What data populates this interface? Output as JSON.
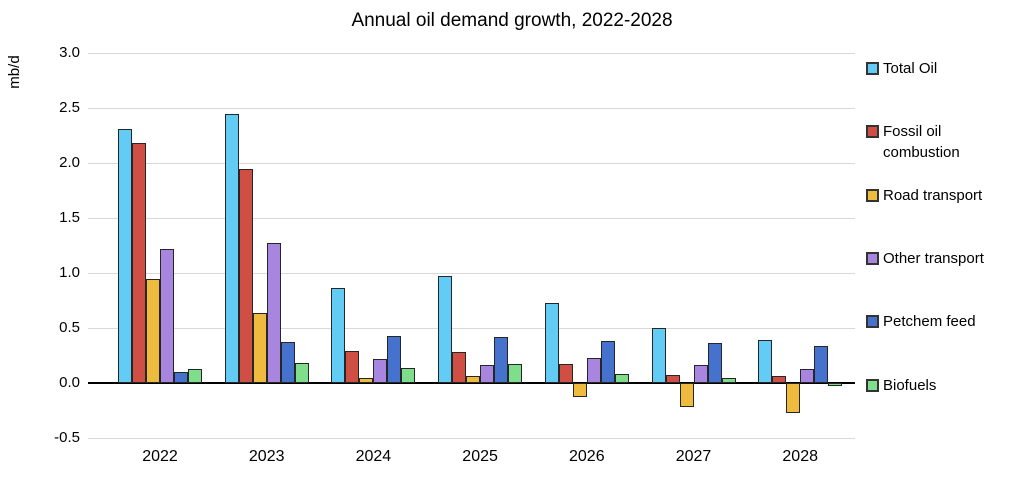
{
  "chart_data": {
    "type": "bar",
    "title": "Annual oil demand growth, 2022-2028",
    "ylabel": "mb/d",
    "xlabel": "",
    "categories": [
      "2022",
      "2023",
      "2024",
      "2025",
      "2026",
      "2027",
      "2028"
    ],
    "series": [
      {
        "name": "Total Oil",
        "color": "#63ccf5",
        "values": [
          2.31,
          2.45,
          0.86,
          0.97,
          0.73,
          0.5,
          0.39
        ]
      },
      {
        "name": "Fossil oil combustion",
        "color": "#cf4f44",
        "values": [
          2.18,
          1.95,
          0.29,
          0.28,
          0.17,
          0.07,
          0.06
        ]
      },
      {
        "name": "Road transport",
        "color": "#efbb3f",
        "values": [
          0.95,
          0.64,
          0.05,
          0.06,
          -0.13,
          -0.22,
          -0.27
        ]
      },
      {
        "name": "Other transport",
        "color": "#a886e0",
        "values": [
          1.22,
          1.27,
          0.22,
          0.16,
          0.23,
          0.16,
          0.13
        ]
      },
      {
        "name": "Petchem feed",
        "color": "#4472cc",
        "values": [
          0.1,
          0.37,
          0.43,
          0.42,
          0.38,
          0.36,
          0.34
        ]
      },
      {
        "name": "Biofuels",
        "color": "#7fde8b",
        "values": [
          0.13,
          0.18,
          0.14,
          0.17,
          0.08,
          0.05,
          -0.03
        ]
      }
    ],
    "ylim": [
      -0.5,
      3.0
    ],
    "yticks": [
      "3.0",
      "2.5",
      "2.0",
      "1.5",
      "1.0",
      "0.5",
      "0.0",
      "-0.5"
    ],
    "grid": true,
    "legend_position": "right",
    "colors": {
      "gridline": "#d9d9d9",
      "axis": "#000000",
      "bar_border": "#262626",
      "text": "#000000",
      "background": "#ffffff"
    }
  }
}
